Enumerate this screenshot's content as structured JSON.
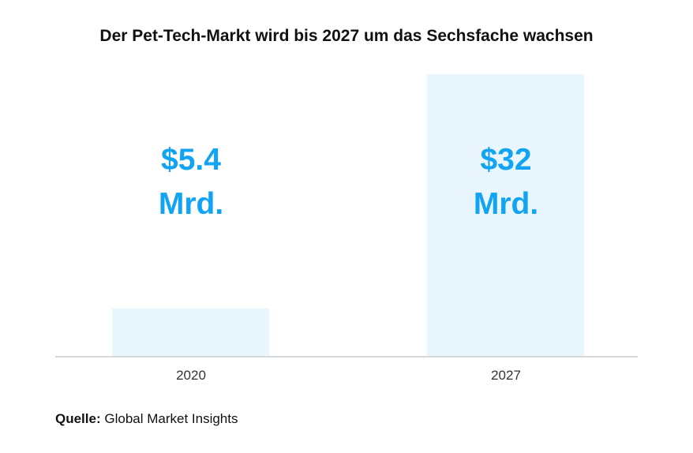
{
  "chart_data": {
    "type": "bar",
    "title": "Der Pet-Tech-Markt wird bis 2027 um das Sechsfache wachsen",
    "categories": [
      "2020",
      "2027"
    ],
    "values": [
      5.4,
      32
    ],
    "value_labels": [
      [
        "$5.4",
        "Mrd."
      ],
      [
        "$32",
        "Mrd."
      ]
    ],
    "unit": "Mrd. USD",
    "xlabel": "",
    "ylabel": "",
    "ylim": [
      0,
      32
    ],
    "grid": false,
    "bar_color": "#eaf6fd",
    "label_color": "#12a4f2"
  },
  "source": {
    "label": "Quelle:",
    "text": "Global Market Insights"
  }
}
